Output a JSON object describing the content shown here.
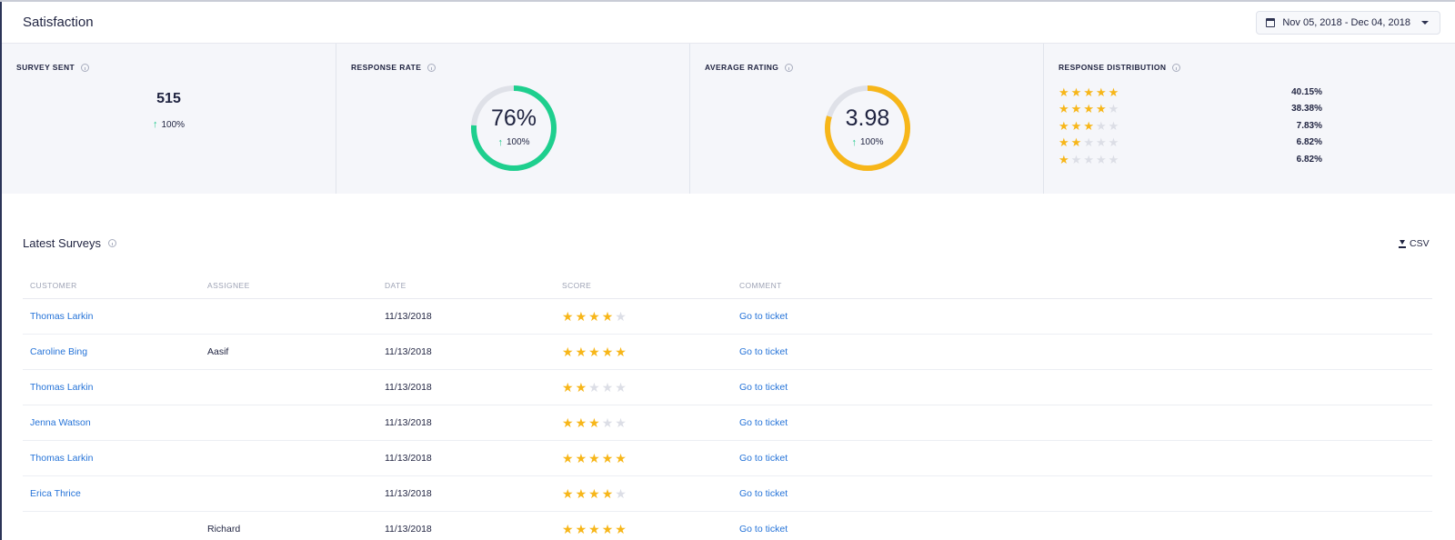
{
  "header": {
    "title": "Satisfaction",
    "date_range": "Nov 05, 2018 - Dec 04, 2018"
  },
  "colors": {
    "accent_green": "#1ecf8e",
    "accent_gold": "#f7b619",
    "link_blue": "#2573d8"
  },
  "stats": {
    "survey_sent": {
      "label": "SURVEY SENT",
      "value": "515",
      "trend": "100%"
    },
    "response_rate": {
      "label": "RESPONSE RATE",
      "value": "76%",
      "fraction": 0.76,
      "trend": "100%"
    },
    "average_rating": {
      "label": "AVERAGE RATING",
      "value": "3.98",
      "fraction": 0.796,
      "trend": "100%"
    },
    "response_distribution": {
      "label": "RESPONSE DISTRIBUTION",
      "rows": [
        {
          "stars": 5,
          "pct": "40.15%"
        },
        {
          "stars": 4,
          "pct": "38.38%"
        },
        {
          "stars": 3,
          "pct": "7.83%"
        },
        {
          "stars": 2,
          "pct": "6.82%"
        },
        {
          "stars": 1,
          "pct": "6.82%"
        }
      ]
    }
  },
  "surveys": {
    "title": "Latest Surveys",
    "csv_label": "CSV",
    "columns": [
      "CUSTOMER",
      "ASSIGNEE",
      "DATE",
      "SCORE",
      "COMMENT"
    ],
    "rows": [
      {
        "customer": "Thomas Larkin",
        "assignee": "",
        "date": "11/13/2018",
        "score": 4,
        "comment": "Go to ticket"
      },
      {
        "customer": "Caroline Bing",
        "assignee": "Aasif",
        "date": "11/13/2018",
        "score": 5,
        "comment": "Go to ticket"
      },
      {
        "customer": "Thomas Larkin",
        "assignee": "",
        "date": "11/13/2018",
        "score": 2,
        "comment": "Go to ticket"
      },
      {
        "customer": "Jenna Watson",
        "assignee": "",
        "date": "11/13/2018",
        "score": 3,
        "comment": "Go to ticket"
      },
      {
        "customer": "Thomas Larkin",
        "assignee": "",
        "date": "11/13/2018",
        "score": 5,
        "comment": "Go to ticket"
      },
      {
        "customer": "Erica Thrice",
        "assignee": "",
        "date": "11/13/2018",
        "score": 4,
        "comment": "Go to ticket"
      },
      {
        "customer": "",
        "assignee": "Richard",
        "date": "11/13/2018",
        "score": 5,
        "comment": "Go to ticket"
      }
    ]
  }
}
